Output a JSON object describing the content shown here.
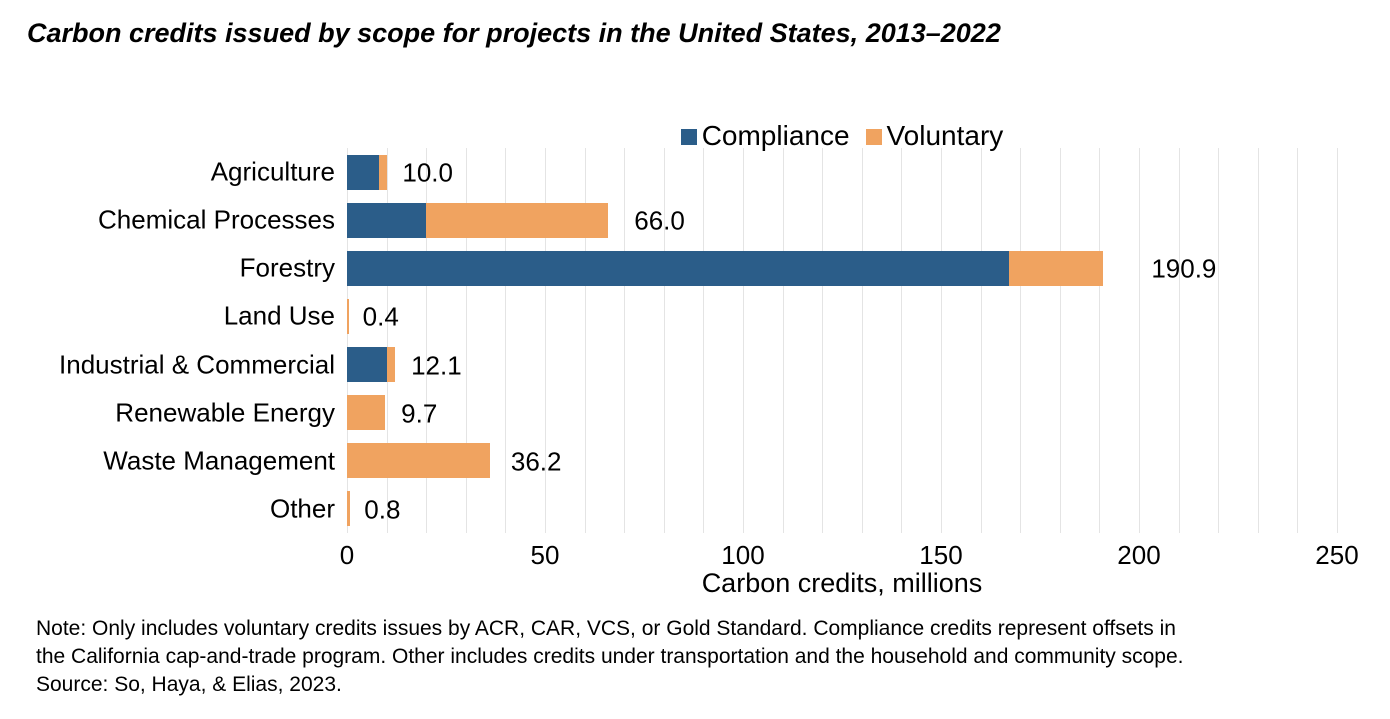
{
  "title": "Carbon credits issued by scope for projects in the United States, 2013–2022",
  "legend": {
    "compliance_label": "Compliance",
    "voluntary_label": "Voluntary"
  },
  "colors": {
    "compliance": "#2b5d89",
    "voluntary": "#f0a360",
    "gridline": "#e4e4e4",
    "text": "#000000",
    "background": "#ffffff"
  },
  "note": {
    "lines": [
      "Note: Only includes voluntary credits issues by ACR, CAR, VCS, or Gold Standard. Compliance credits represent offsets in",
      "the California cap-and-trade program. Other includes credits under transportation and the household and community scope.",
      "Source: So, Haya, & Elias, 2023."
    ]
  },
  "chart_data": {
    "type": "bar",
    "orientation": "horizontal",
    "stacked": true,
    "title": "Carbon credits issued by scope for projects in the United States, 2013–2022",
    "categories": [
      "Agriculture",
      "Chemical Processes",
      "Forestry",
      "Land Use",
      "Industrial & Commercial",
      "Renewable Energy",
      "Waste Management",
      "Other"
    ],
    "series": [
      {
        "name": "Compliance",
        "color": "#2b5d89",
        "values": [
          8.2,
          20.0,
          167.2,
          0,
          10.2,
          0,
          0,
          0
        ]
      },
      {
        "name": "Voluntary",
        "color": "#f0a360",
        "values": [
          1.8,
          46.0,
          23.7,
          0.4,
          1.9,
          9.7,
          36.2,
          0.8
        ]
      }
    ],
    "totals": [
      10.0,
      66.0,
      190.9,
      0.4,
      12.1,
      9.7,
      36.2,
      0.8
    ],
    "total_labels": [
      "10.0",
      "66.0",
      "190.9",
      "0.4",
      "12.1",
      "9.7",
      "36.2",
      "0.8"
    ],
    "xlabel": "Carbon credits, millions",
    "ylabel": "",
    "xlim": [
      0,
      250
    ],
    "x_ticks": [
      0,
      50,
      100,
      150,
      200,
      250
    ],
    "x_tick_step": 50,
    "gridline_step": 10,
    "grid": true,
    "legend_position": "top-center",
    "bar_labels": "outside-end"
  }
}
